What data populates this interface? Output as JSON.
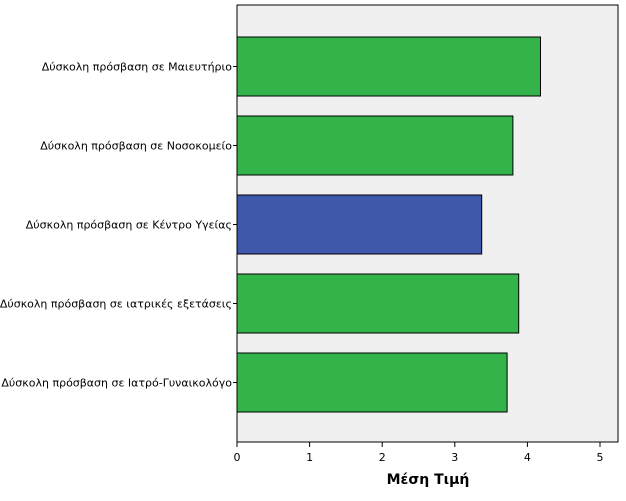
{
  "chart_data": {
    "type": "bar",
    "orientation": "horizontal",
    "categories": [
      "Δύσκολη πρόσβαση σε Μαιευτήριο",
      "Δύσκολη πρόσβαση σε Νοσοκομείο",
      "Δύσκολη πρόσβαση σε Κέντρο Υγείας",
      "Δύσκολη πρόσβαση σε ιατρικές εξετάσεις",
      "Δύσκολη πρόσβαση σε Ιατρό-Γυναικολόγο"
    ],
    "values": [
      4.18,
      3.8,
      3.37,
      3.88,
      3.72
    ],
    "bar_colors": [
      "#33b34a",
      "#33b34a",
      "#3f58ab",
      "#33b34a",
      "#33b34a"
    ],
    "xlabel": "Μέση Τιμή",
    "ylabel": "",
    "xlim": [
      0,
      5
    ],
    "xticks": [
      "0",
      "1",
      "2",
      "3",
      "4",
      "5"
    ],
    "plot_background": "#f0f0f0",
    "grid": false,
    "legend": "none"
  }
}
